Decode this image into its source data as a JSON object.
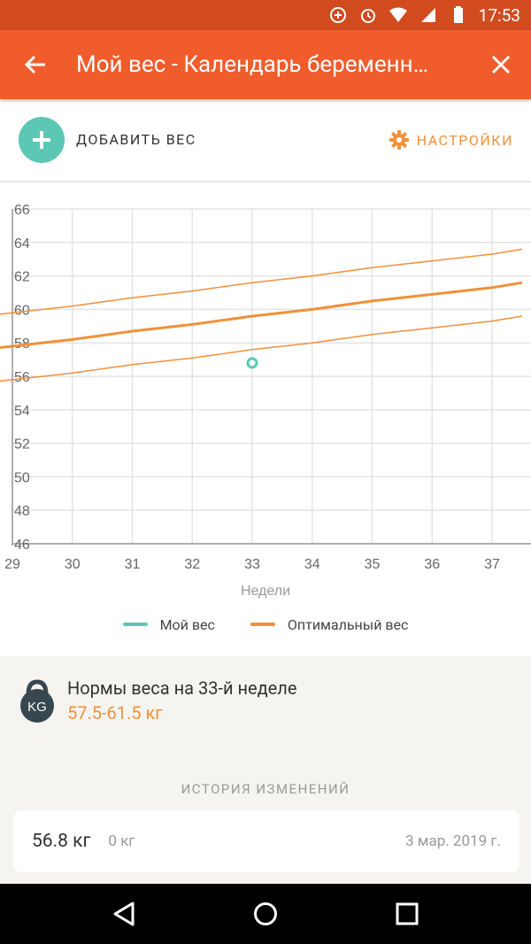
{
  "status": {
    "time": "17:53"
  },
  "appbar": {
    "title": "Мой вес - Календарь беременн…"
  },
  "actions": {
    "add_label": "ДОБАВИТЬ ВЕС",
    "settings_label": "НАСТРОЙКИ"
  },
  "colors": {
    "accent": "#f05c2c",
    "teal": "#5cc7b5",
    "orange": "#f0913a"
  },
  "chart_data": {
    "type": "line",
    "xlabel": "Недели",
    "ylabel": "",
    "xlim": [
      29,
      37.5
    ],
    "ylim": [
      46,
      66
    ],
    "x_ticks": [
      29,
      30,
      31,
      32,
      33,
      34,
      35,
      36,
      37
    ],
    "y_ticks": [
      46,
      48,
      50,
      52,
      54,
      56,
      58,
      60,
      62,
      64,
      66
    ],
    "grid": true,
    "legend_position": "bottom",
    "series": [
      {
        "name": "Оптимальный вес",
        "values_x": [
          29,
          30,
          31,
          32,
          33,
          34,
          35,
          36,
          37,
          37.5
        ],
        "values": [
          57.8,
          58.2,
          58.7,
          59.1,
          59.6,
          60.0,
          60.5,
          60.9,
          61.3,
          61.6
        ]
      },
      {
        "name": "",
        "values_x": [
          29,
          30,
          31,
          32,
          33,
          34,
          35,
          36,
          37,
          37.5
        ],
        "values": [
          59.8,
          60.2,
          60.7,
          61.1,
          61.6,
          62.0,
          62.5,
          62.9,
          63.3,
          63.6
        ]
      },
      {
        "name": "",
        "values_x": [
          29,
          30,
          31,
          32,
          33,
          34,
          35,
          36,
          37,
          37.5
        ],
        "values": [
          55.8,
          56.2,
          56.7,
          57.1,
          57.6,
          58.0,
          58.5,
          58.9,
          59.3,
          59.6
        ]
      },
      {
        "name": "Мой вес",
        "values_x": [
          33
        ],
        "values": [
          56.8
        ]
      }
    ]
  },
  "legend": {
    "my_weight": "Мой вес",
    "optimal": "Оптимальный вес"
  },
  "norms": {
    "title": "Нормы веса на 33-й неделе",
    "range": "57.5-61.5 кг",
    "icon_text": "KG"
  },
  "history": {
    "header": "ИСТОРИЯ ИЗМЕНЕНИЙ",
    "entries": [
      {
        "weight": "56.8 кг",
        "delta": "0 кг",
        "date": "3 мар. 2019 г."
      }
    ]
  }
}
